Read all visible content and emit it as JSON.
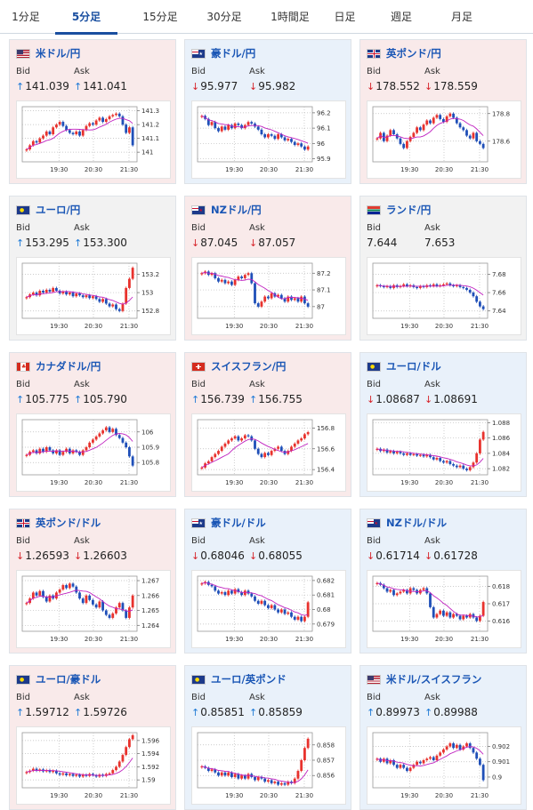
{
  "tabs": [
    {
      "label": "1分足",
      "active": false
    },
    {
      "label": "5分足",
      "active": true
    },
    {
      "label": "15分足",
      "active": false
    },
    {
      "label": "30分足",
      "active": false
    },
    {
      "label": "1時間足",
      "active": false
    },
    {
      "label": "日足",
      "active": false
    },
    {
      "label": "週足",
      "active": false
    },
    {
      "label": "月足",
      "active": false
    }
  ],
  "labels": {
    "bid": "Bid",
    "ask": "Ask"
  },
  "colors": {
    "candle_up": "#e8322d",
    "candle_down": "#1f4fb8",
    "ma_line": "#c022c0",
    "ma_line2": "#2ba3d8",
    "up_arrow": "#1e7ad6",
    "down_arrow": "#d6232a"
  },
  "pairs": [
    {
      "name": "米ドル/円",
      "flag": "us",
      "trend": "up",
      "bid": "141.039",
      "ask": "141.041",
      "bid_dir": "up",
      "ask_dir": "up",
      "x_ticks": [
        "19:30",
        "20:30",
        "21:30"
      ],
      "y_ticks": [
        "141.3",
        "141.2",
        "141.1",
        "141"
      ],
      "ylim": [
        140.93,
        141.33
      ],
      "series": [
        141.02,
        141.05,
        141.08,
        141.07,
        141.1,
        141.12,
        141.15,
        141.13,
        141.18,
        141.2,
        141.22,
        141.19,
        141.16,
        141.14,
        141.13,
        141.15,
        141.12,
        141.16,
        141.19,
        141.21,
        141.2,
        141.23,
        141.25,
        141.22,
        141.24,
        141.26,
        141.27,
        141.28,
        141.26,
        141.2,
        141.14,
        141.18,
        141.05
      ]
    },
    {
      "name": "豪ドル/円",
      "flag": "au",
      "trend": "down",
      "bid": "95.977",
      "ask": "95.982",
      "bid_dir": "down",
      "ask_dir": "down",
      "x_ticks": [
        "19:30",
        "20:30",
        "21:30"
      ],
      "y_ticks": [
        "96.2",
        "96.1",
        "96",
        "95.9"
      ],
      "ylim": [
        95.88,
        96.24
      ],
      "series": [
        96.18,
        96.16,
        96.12,
        96.14,
        96.1,
        96.08,
        96.11,
        96.09,
        96.12,
        96.1,
        96.13,
        96.12,
        96.1,
        96.12,
        96.14,
        96.13,
        96.11,
        96.09,
        96.06,
        96.04,
        96.06,
        96.05,
        96.03,
        96.06,
        96.04,
        96.02,
        96.03,
        96.01,
        95.99,
        96.0,
        95.98,
        95.96,
        95.98
      ]
    },
    {
      "name": "英ポンド/円",
      "flag": "uk",
      "trend": "up",
      "bid": "178.552",
      "ask": "178.559",
      "bid_dir": "down",
      "ask_dir": "down",
      "x_ticks": [
        "19:30",
        "20:30",
        "21:30"
      ],
      "y_ticks": [
        "178.8",
        "178.6"
      ],
      "ylim": [
        178.45,
        178.85
      ],
      "series": [
        178.62,
        178.66,
        178.6,
        178.64,
        178.68,
        178.65,
        178.62,
        178.58,
        178.55,
        178.6,
        178.63,
        178.66,
        178.7,
        178.68,
        178.72,
        178.75,
        178.73,
        178.77,
        178.79,
        178.76,
        178.74,
        178.78,
        178.8,
        178.77,
        178.73,
        178.7,
        178.68,
        178.64,
        178.62,
        178.66,
        178.6,
        178.58,
        178.55
      ]
    },
    {
      "name": "ユーロ/円",
      "flag": "eu",
      "trend": "flat",
      "bid": "153.295",
      "ask": "153.300",
      "bid_dir": "up",
      "ask_dir": "up",
      "x_ticks": [
        "19:30",
        "20:30",
        "21:30"
      ],
      "y_ticks": [
        "153.2",
        "153",
        "152.8"
      ],
      "ylim": [
        152.72,
        153.32
      ],
      "series": [
        152.95,
        152.98,
        153.0,
        152.97,
        153.02,
        153.0,
        153.03,
        153.01,
        153.05,
        153.02,
        152.99,
        153.01,
        152.98,
        153.0,
        152.96,
        152.99,
        152.97,
        152.95,
        152.97,
        152.94,
        152.96,
        152.93,
        152.9,
        152.93,
        152.88,
        152.85,
        152.87,
        152.82,
        152.8,
        152.88,
        153.05,
        153.15,
        153.27
      ]
    },
    {
      "name": "NZドル/円",
      "flag": "nz",
      "trend": "up",
      "bid": "87.045",
      "ask": "87.057",
      "bid_dir": "down",
      "ask_dir": "down",
      "x_ticks": [
        "19:30",
        "20:30",
        "21:30"
      ],
      "y_ticks": [
        "87.2",
        "87.1",
        "87"
      ],
      "ylim": [
        86.93,
        87.26
      ],
      "series": [
        87.2,
        87.21,
        87.19,
        87.2,
        87.17,
        87.15,
        87.16,
        87.14,
        87.15,
        87.13,
        87.16,
        87.18,
        87.17,
        87.19,
        87.2,
        87.14,
        87.02,
        87.0,
        87.03,
        87.06,
        87.05,
        87.08,
        87.06,
        87.07,
        87.05,
        87.03,
        87.06,
        87.04,
        87.05,
        87.03,
        87.06,
        87.02,
        87.0
      ]
    },
    {
      "name": "ランド/円",
      "flag": "za",
      "trend": "flat",
      "bid": "7.644",
      "ask": "7.653",
      "bid_dir": "",
      "ask_dir": "",
      "x_ticks": [
        "19:30",
        "20:30",
        "21:30"
      ],
      "y_ticks": [
        "7.68",
        "7.66",
        "7.64"
      ],
      "ylim": [
        7.632,
        7.692
      ],
      "series": [
        7.668,
        7.667,
        7.666,
        7.667,
        7.665,
        7.668,
        7.666,
        7.667,
        7.669,
        7.667,
        7.668,
        7.666,
        7.665,
        7.667,
        7.666,
        7.668,
        7.667,
        7.669,
        7.667,
        7.668,
        7.669,
        7.67,
        7.668,
        7.667,
        7.668,
        7.666,
        7.665,
        7.663,
        7.66,
        7.656,
        7.65,
        7.645,
        7.642
      ]
    },
    {
      "name": "カナダドル/円",
      "flag": "ca",
      "trend": "up",
      "bid": "105.775",
      "ask": "105.790",
      "bid_dir": "up",
      "ask_dir": "up",
      "x_ticks": [
        "19:30",
        "20:30",
        "21:30"
      ],
      "y_ticks": [
        "106",
        "105.9",
        "105.8"
      ],
      "ylim": [
        105.72,
        106.08
      ],
      "series": [
        105.85,
        105.87,
        105.88,
        105.86,
        105.89,
        105.87,
        105.9,
        105.88,
        105.86,
        105.88,
        105.85,
        105.87,
        105.89,
        105.86,
        105.88,
        105.87,
        105.85,
        105.88,
        105.9,
        105.93,
        105.95,
        105.97,
        105.99,
        106.01,
        106.03,
        106.0,
        106.02,
        105.98,
        105.96,
        105.93,
        105.9,
        105.84,
        105.78
      ]
    },
    {
      "name": "スイスフラン/円",
      "flag": "ch",
      "trend": "up",
      "bid": "156.739",
      "ask": "156.755",
      "bid_dir": "up",
      "ask_dir": "up",
      "x_ticks": [
        "19:30",
        "20:30",
        "21:30"
      ],
      "y_ticks": [
        "156.8",
        "156.6",
        "156.4"
      ],
      "ylim": [
        156.35,
        156.88
      ],
      "series": [
        156.42,
        156.46,
        156.48,
        156.52,
        156.55,
        156.58,
        156.62,
        156.65,
        156.68,
        156.7,
        156.72,
        156.68,
        156.7,
        156.73,
        156.72,
        156.68,
        156.6,
        156.55,
        156.52,
        156.56,
        156.54,
        156.58,
        156.6,
        156.62,
        156.58,
        156.55,
        156.58,
        156.62,
        156.65,
        156.68,
        156.7,
        156.74,
        156.76
      ]
    },
    {
      "name": "ユーロ/ドル",
      "flag": "eu",
      "trend": "down",
      "bid": "1.08687",
      "ask": "1.08691",
      "bid_dir": "down",
      "ask_dir": "down",
      "x_ticks": [
        "19:30",
        "20:30",
        "21:30"
      ],
      "y_ticks": [
        "1.088",
        "1.086",
        "1.084",
        "1.082"
      ],
      "ylim": [
        1.0812,
        1.0884
      ],
      "series": [
        1.0846,
        1.0843,
        1.0845,
        1.0841,
        1.0843,
        1.084,
        1.0842,
        1.084,
        1.0838,
        1.084,
        1.0838,
        1.0839,
        1.0837,
        1.0838,
        1.0836,
        1.0838,
        1.0835,
        1.0832,
        1.0834,
        1.083,
        1.0828,
        1.083,
        1.0826,
        1.0824,
        1.0822,
        1.0824,
        1.082,
        1.0818,
        1.0822,
        1.0828,
        1.084,
        1.0858,
        1.0868
      ]
    },
    {
      "name": "英ポンド/ドル",
      "flag": "uk",
      "trend": "up",
      "bid": "1.26593",
      "ask": "1.26603",
      "bid_dir": "down",
      "ask_dir": "down",
      "x_ticks": [
        "19:30",
        "20:30",
        "21:30"
      ],
      "y_ticks": [
        "1.267",
        "1.266",
        "1.265",
        "1.264"
      ],
      "ylim": [
        1.2636,
        1.2673
      ],
      "series": [
        1.2655,
        1.2658,
        1.2662,
        1.266,
        1.2663,
        1.2659,
        1.2656,
        1.266,
        1.2658,
        1.2662,
        1.2664,
        1.2667,
        1.2665,
        1.2668,
        1.2666,
        1.2662,
        1.2658,
        1.2655,
        1.266,
        1.2657,
        1.2654,
        1.2652,
        1.2656,
        1.265,
        1.2647,
        1.2645,
        1.2648,
        1.2652,
        1.2655,
        1.265,
        1.2645,
        1.2652,
        1.266
      ]
    },
    {
      "name": "豪ドル/ドル",
      "flag": "au",
      "trend": "down",
      "bid": "0.68046",
      "ask": "0.68055",
      "bid_dir": "down",
      "ask_dir": "down",
      "x_ticks": [
        "19:30",
        "20:30",
        "21:30"
      ],
      "y_ticks": [
        "0.682",
        "0.681",
        "0.68",
        "0.679"
      ],
      "ylim": [
        0.6785,
        0.6823
      ],
      "series": [
        0.6818,
        0.6819,
        0.6817,
        0.6816,
        0.6813,
        0.6811,
        0.6812,
        0.681,
        0.6813,
        0.6811,
        0.6814,
        0.6812,
        0.681,
        0.6813,
        0.6811,
        0.6809,
        0.6806,
        0.6804,
        0.6806,
        0.6803,
        0.6801,
        0.6803,
        0.68,
        0.6798,
        0.68,
        0.6797,
        0.6798,
        0.6795,
        0.6793,
        0.6795,
        0.6792,
        0.6795,
        0.6805
      ]
    },
    {
      "name": "NZドル/ドル",
      "flag": "nz",
      "trend": "down",
      "bid": "0.61714",
      "ask": "0.61728",
      "bid_dir": "down",
      "ask_dir": "down",
      "x_ticks": [
        "19:30",
        "20:30",
        "21:30"
      ],
      "y_ticks": [
        "0.618",
        "0.617",
        "0.616"
      ],
      "ylim": [
        0.6154,
        0.6186
      ],
      "series": [
        0.6182,
        0.6181,
        0.6179,
        0.6177,
        0.6178,
        0.6175,
        0.6176,
        0.6177,
        0.6178,
        0.6176,
        0.6179,
        0.6178,
        0.6176,
        0.6178,
        0.6179,
        0.6176,
        0.6168,
        0.6162,
        0.6164,
        0.6166,
        0.6163,
        0.6165,
        0.6162,
        0.6164,
        0.6163,
        0.6161,
        0.6163,
        0.6162,
        0.6164,
        0.6162,
        0.616,
        0.6163,
        0.6171
      ]
    },
    {
      "name": "ユーロ/豪ドル",
      "flag": "eu",
      "trend": "up",
      "bid": "1.59712",
      "ask": "1.59726",
      "bid_dir": "up",
      "ask_dir": "up",
      "x_ticks": [
        "19:30",
        "20:30",
        "21:30"
      ],
      "y_ticks": [
        "1.596",
        "1.594",
        "1.592",
        "1.59"
      ],
      "ylim": [
        1.5888,
        1.5972
      ],
      "series": [
        1.5912,
        1.5914,
        1.5917,
        1.5914,
        1.5916,
        1.5913,
        1.5915,
        1.5912,
        1.5914,
        1.591,
        1.5908,
        1.591,
        1.5907,
        1.5909,
        1.5906,
        1.5908,
        1.5905,
        1.5908,
        1.5906,
        1.5909,
        1.5907,
        1.5905,
        1.5908,
        1.5906,
        1.5909,
        1.591,
        1.5915,
        1.592,
        1.5928,
        1.5938,
        1.595,
        1.5962,
        1.5968
      ]
    },
    {
      "name": "ユーロ/英ポンド",
      "flag": "eu",
      "trend": "down",
      "bid": "0.85851",
      "ask": "0.85859",
      "bid_dir": "up",
      "ask_dir": "up",
      "x_ticks": [
        "19:30",
        "20:30",
        "21:30"
      ],
      "y_ticks": [
        "0.858",
        "0.857",
        "0.856"
      ],
      "ylim": [
        0.8552,
        0.8588
      ],
      "series": [
        0.8566,
        0.8565,
        0.8563,
        0.8564,
        0.8562,
        0.856,
        0.8562,
        0.856,
        0.8562,
        0.8559,
        0.8561,
        0.8558,
        0.856,
        0.8558,
        0.8561,
        0.8559,
        0.8557,
        0.8559,
        0.8558,
        0.8556,
        0.8557,
        0.8555,
        0.8556,
        0.8554,
        0.8555,
        0.8554,
        0.8556,
        0.8555,
        0.8558,
        0.8563,
        0.857,
        0.8578,
        0.8584
      ]
    },
    {
      "name": "米ドル/スイスフラン",
      "flag": "us",
      "trend": "down",
      "bid": "0.89973",
      "ask": "0.89988",
      "bid_dir": "up",
      "ask_dir": "up",
      "x_ticks": [
        "19:30",
        "20:30",
        "21:30"
      ],
      "y_ticks": [
        "0.902",
        "0.901",
        "0.9"
      ],
      "ylim": [
        0.8993,
        0.9029
      ],
      "series": [
        0.9012,
        0.901,
        0.9012,
        0.9009,
        0.9011,
        0.9008,
        0.9006,
        0.9008,
        0.9006,
        0.9004,
        0.9006,
        0.9008,
        0.901,
        0.9009,
        0.9011,
        0.9012,
        0.9013,
        0.9011,
        0.9014,
        0.9016,
        0.9018,
        0.902,
        0.9022,
        0.9019,
        0.9021,
        0.9018,
        0.902,
        0.9022,
        0.9019,
        0.9016,
        0.9012,
        0.9008,
        0.8998
      ]
    }
  ]
}
